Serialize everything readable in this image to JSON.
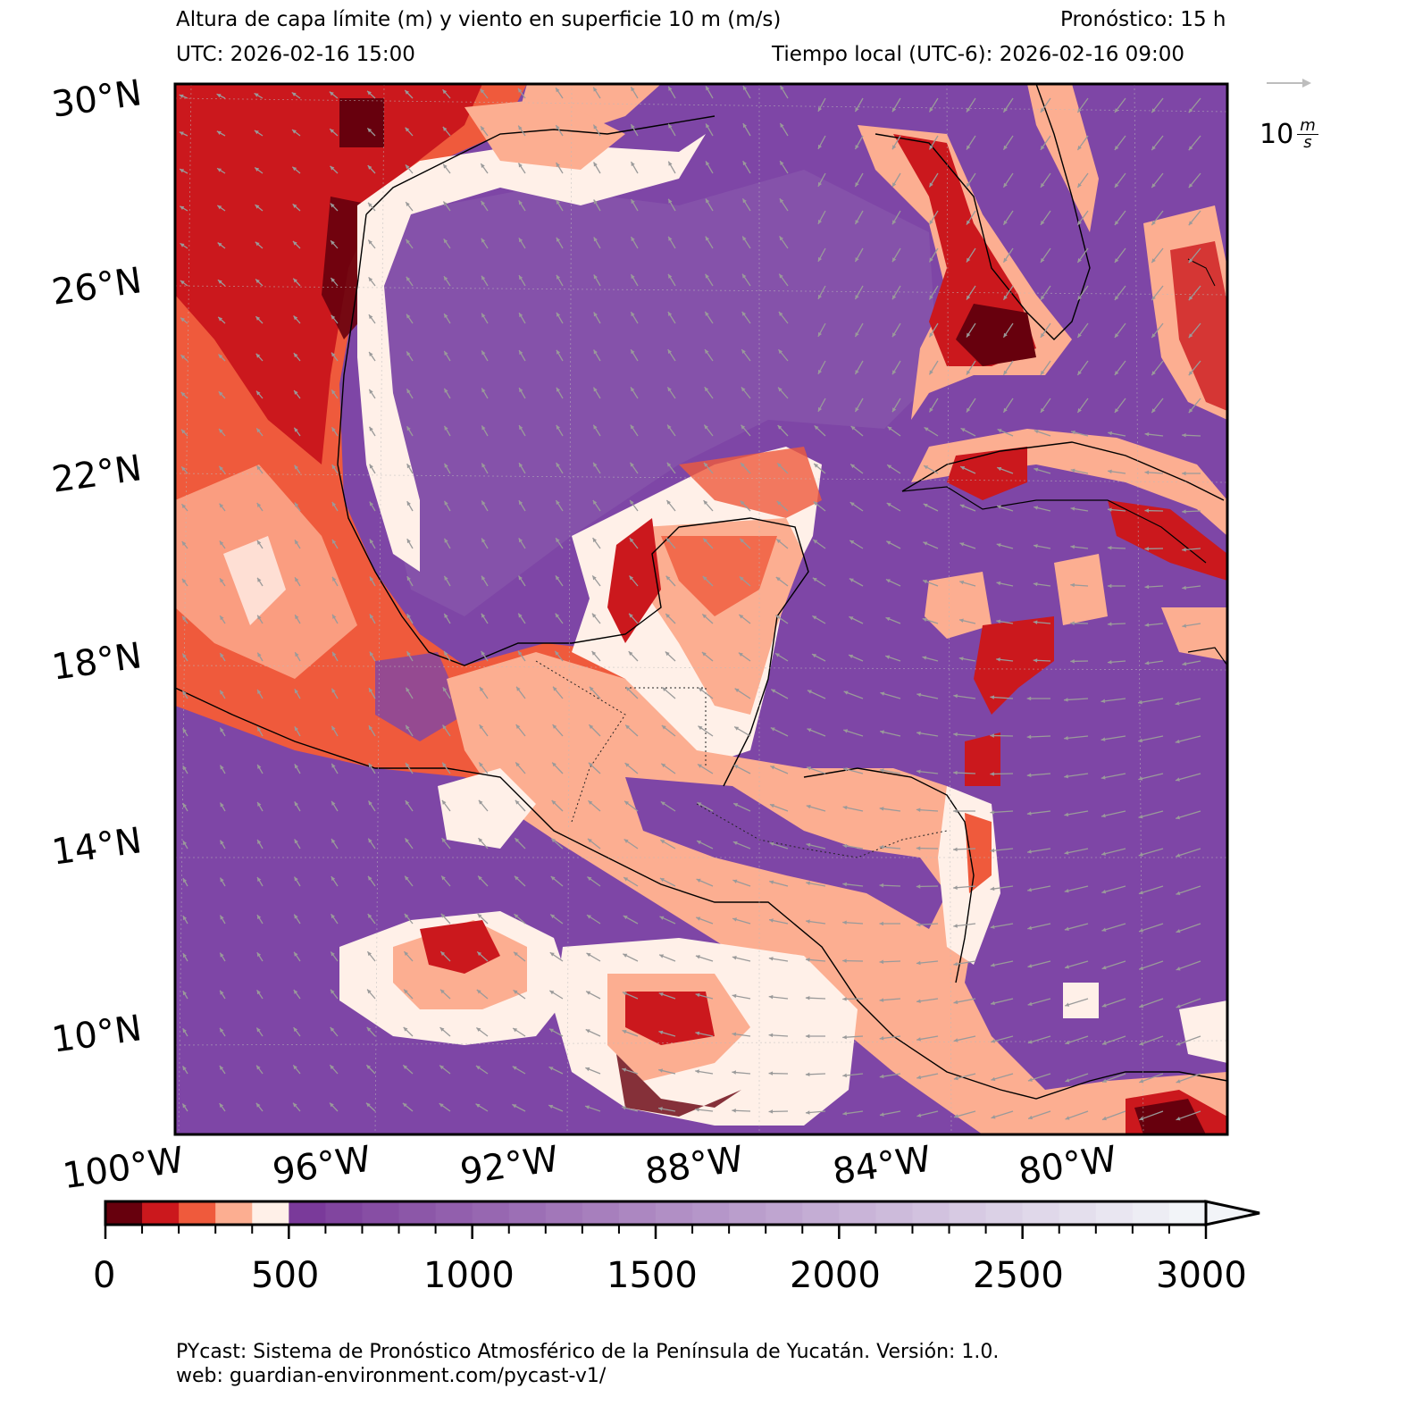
{
  "header": {
    "title": "Altura de capa límite (m) y viento en superficie 10 m (m/s)",
    "forecast": "Pronóstico: 15 h",
    "utc": "UTC:  2026-02-16 15:00",
    "local_time": "Tiempo local (UTC-6): 2026-02-16 09:00"
  },
  "map": {
    "lat_labels": [
      "30°N",
      "26°N",
      "22°N",
      "18°N",
      "14°N",
      "10°N"
    ],
    "lon_labels": [
      "100°W",
      "96°W",
      "92°W",
      "88°W",
      "84°W",
      "80°W"
    ],
    "wind_key": {
      "value": "10",
      "unit_top": "m",
      "unit_bottom": "s"
    }
  },
  "colorbar": {
    "tick_labels": [
      "0",
      "500",
      "1000",
      "1500",
      "2000",
      "2500",
      "3000"
    ],
    "colors_low": [
      "#67000d",
      "#cb181d",
      "#ef5a3c",
      "#fcae91",
      "#fff0e8"
    ],
    "colors_high_start": "#7a3a9a",
    "colors_high_end": "#f2f4f8"
  },
  "footer": {
    "line1": "PYcast: Sistema de Pronóstico Atmosférico de la Península de Yucatán. Versión: 1.0.",
    "line2": "web: guardian-environment.com/pycast-v1/"
  }
}
